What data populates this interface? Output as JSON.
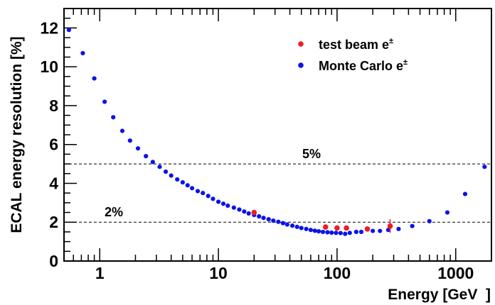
{
  "chart_data": {
    "type": "scatter",
    "xlabel": "Energy [GeV  ]",
    "ylabel": "ECAL energy resolution [%]",
    "xscale": "log",
    "xlim": [
      0.5,
      2000
    ],
    "ylim": [
      0,
      13
    ],
    "y_ticks": [
      "0",
      "2",
      "4",
      "6",
      "8",
      "10",
      "12"
    ],
    "x_ticks": [
      "1",
      "10",
      "100",
      "1000"
    ],
    "grid": false,
    "legend_position": "top-right",
    "reference_lines": [
      {
        "label": "5%",
        "y": 5
      },
      {
        "label": "2%",
        "y": 2
      }
    ],
    "series": [
      {
        "name": "test beam e",
        "name_superscript": "±",
        "color": "#ee1c24",
        "points": [
          {
            "x": 20,
            "y": 2.5
          },
          {
            "x": 80,
            "y": 1.75
          },
          {
            "x": 100,
            "y": 1.7
          },
          {
            "x": 120,
            "y": 1.7
          },
          {
            "x": 180,
            "y": 1.65
          },
          {
            "x": 280,
            "y": 1.8,
            "err": 0.35
          }
        ]
      },
      {
        "name": "Monte Carlo e",
        "name_superscript": "±",
        "color": "#0a14e6",
        "points": [
          {
            "x": 0.55,
            "y": 11.9
          },
          {
            "x": 0.72,
            "y": 10.7
          },
          {
            "x": 0.9,
            "y": 9.4
          },
          {
            "x": 1.1,
            "y": 8.2
          },
          {
            "x": 1.3,
            "y": 7.4
          },
          {
            "x": 1.55,
            "y": 6.7
          },
          {
            "x": 1.8,
            "y": 6.2
          },
          {
            "x": 2.1,
            "y": 5.8
          },
          {
            "x": 2.45,
            "y": 5.4
          },
          {
            "x": 2.8,
            "y": 5.1
          },
          {
            "x": 3.2,
            "y": 4.85
          },
          {
            "x": 3.6,
            "y": 4.6
          },
          {
            "x": 4.0,
            "y": 4.4
          },
          {
            "x": 4.5,
            "y": 4.2
          },
          {
            "x": 5.0,
            "y": 4.05
          },
          {
            "x": 5.5,
            "y": 3.9
          },
          {
            "x": 6.0,
            "y": 3.75
          },
          {
            "x": 6.7,
            "y": 3.6
          },
          {
            "x": 7.4,
            "y": 3.5
          },
          {
            "x": 8.2,
            "y": 3.35
          },
          {
            "x": 9.0,
            "y": 3.2
          },
          {
            "x": 10,
            "y": 3.05
          },
          {
            "x": 11,
            "y": 2.95
          },
          {
            "x": 12,
            "y": 2.85
          },
          {
            "x": 13.5,
            "y": 2.75
          },
          {
            "x": 15,
            "y": 2.65
          },
          {
            "x": 16.5,
            "y": 2.55
          },
          {
            "x": 18,
            "y": 2.45
          },
          {
            "x": 20,
            "y": 2.37
          },
          {
            "x": 22,
            "y": 2.3
          },
          {
            "x": 24,
            "y": 2.22
          },
          {
            "x": 26.5,
            "y": 2.15
          },
          {
            "x": 29,
            "y": 2.08
          },
          {
            "x": 32,
            "y": 2.02
          },
          {
            "x": 35,
            "y": 1.95
          },
          {
            "x": 38,
            "y": 1.88
          },
          {
            "x": 42,
            "y": 1.82
          },
          {
            "x": 46,
            "y": 1.76
          },
          {
            "x": 50,
            "y": 1.7
          },
          {
            "x": 55,
            "y": 1.65
          },
          {
            "x": 60,
            "y": 1.6
          },
          {
            "x": 65,
            "y": 1.56
          },
          {
            "x": 70,
            "y": 1.53
          },
          {
            "x": 76,
            "y": 1.5
          },
          {
            "x": 83,
            "y": 1.48
          },
          {
            "x": 90,
            "y": 1.46
          },
          {
            "x": 98,
            "y": 1.45
          },
          {
            "x": 107,
            "y": 1.44
          },
          {
            "x": 117,
            "y": 1.4
          },
          {
            "x": 128,
            "y": 1.45
          },
          {
            "x": 145,
            "y": 1.5
          },
          {
            "x": 160,
            "y": 1.5
          },
          {
            "x": 200,
            "y": 1.55
          },
          {
            "x": 230,
            "y": 1.55
          },
          {
            "x": 270,
            "y": 1.6
          },
          {
            "x": 330,
            "y": 1.65
          },
          {
            "x": 430,
            "y": 1.8
          },
          {
            "x": 600,
            "y": 2.05
          },
          {
            "x": 850,
            "y": 2.5
          },
          {
            "x": 1200,
            "y": 3.45
          },
          {
            "x": 1750,
            "y": 4.85
          }
        ]
      }
    ]
  }
}
